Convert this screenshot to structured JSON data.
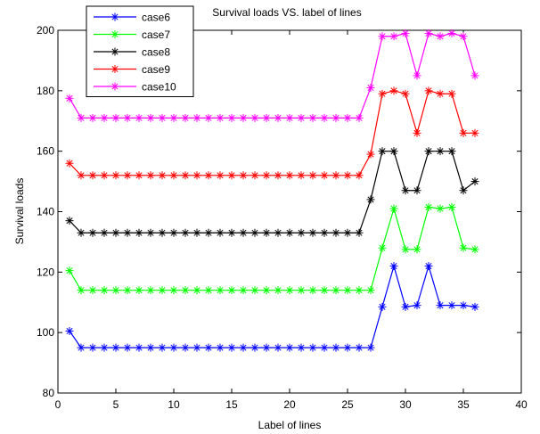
{
  "chart_data": {
    "type": "line",
    "title": "Survival loads VS. label of lines",
    "xlabel": "Label of lines",
    "ylabel": "Survival loads",
    "xlim": [
      0,
      40
    ],
    "ylim": [
      80,
      200
    ],
    "xticks": [
      0,
      5,
      10,
      15,
      20,
      25,
      30,
      35,
      40
    ],
    "yticks": [
      80,
      100,
      120,
      140,
      160,
      180,
      200
    ],
    "xtick_labels": [
      "0",
      "5",
      "10",
      "15",
      "20",
      "25",
      "30",
      "35",
      "40"
    ],
    "ytick_labels": [
      "80",
      "100",
      "120",
      "140",
      "160",
      "180",
      "200"
    ],
    "grid": false,
    "legend_position": "top-left",
    "marker": "*",
    "x": [
      1,
      2,
      3,
      4,
      5,
      6,
      7,
      8,
      9,
      10,
      11,
      12,
      13,
      14,
      15,
      16,
      17,
      18,
      19,
      20,
      21,
      22,
      23,
      24,
      25,
      26,
      27,
      28,
      29,
      30,
      31,
      32,
      33,
      34,
      35,
      36
    ],
    "series": [
      {
        "name": "case6",
        "color": "#0000ff",
        "values": [
          100.5,
          95,
          95,
          95,
          95,
          95,
          95,
          95,
          95,
          95,
          95,
          95,
          95,
          95,
          95,
          95,
          95,
          95,
          95,
          95,
          95,
          95,
          95,
          95,
          95,
          95,
          95,
          108.5,
          122,
          108.5,
          109,
          122,
          109,
          109,
          109,
          108.5
        ]
      },
      {
        "name": "case7",
        "color": "#00ff00",
        "values": [
          120.5,
          114,
          114,
          114,
          114,
          114,
          114,
          114,
          114,
          114,
          114,
          114,
          114,
          114,
          114,
          114,
          114,
          114,
          114,
          114,
          114,
          114,
          114,
          114,
          114,
          114,
          114,
          128,
          141,
          127.5,
          127.5,
          141.5,
          141,
          141.5,
          128,
          127.5
        ]
      },
      {
        "name": "case8",
        "color": "#000000",
        "values": [
          137,
          133,
          133,
          133,
          133,
          133,
          133,
          133,
          133,
          133,
          133,
          133,
          133,
          133,
          133,
          133,
          133,
          133,
          133,
          133,
          133,
          133,
          133,
          133,
          133,
          133,
          144,
          160,
          160,
          147,
          147,
          160,
          160,
          160,
          147,
          150
        ]
      },
      {
        "name": "case9",
        "color": "#ff0000",
        "values": [
          156,
          152,
          152,
          152,
          152,
          152,
          152,
          152,
          152,
          152,
          152,
          152,
          152,
          152,
          152,
          152,
          152,
          152,
          152,
          152,
          152,
          152,
          152,
          152,
          152,
          152,
          159,
          179,
          180,
          179,
          166,
          180,
          179,
          179,
          166,
          166
        ]
      },
      {
        "name": "case10",
        "color": "#ff00ff",
        "values": [
          177.5,
          171,
          171,
          171,
          171,
          171,
          171,
          171,
          171,
          171,
          171,
          171,
          171,
          171,
          171,
          171,
          171,
          171,
          171,
          171,
          171,
          171,
          171,
          171,
          171,
          171,
          181,
          198,
          198,
          199,
          185,
          199,
          198,
          199,
          198,
          185
        ]
      }
    ]
  }
}
